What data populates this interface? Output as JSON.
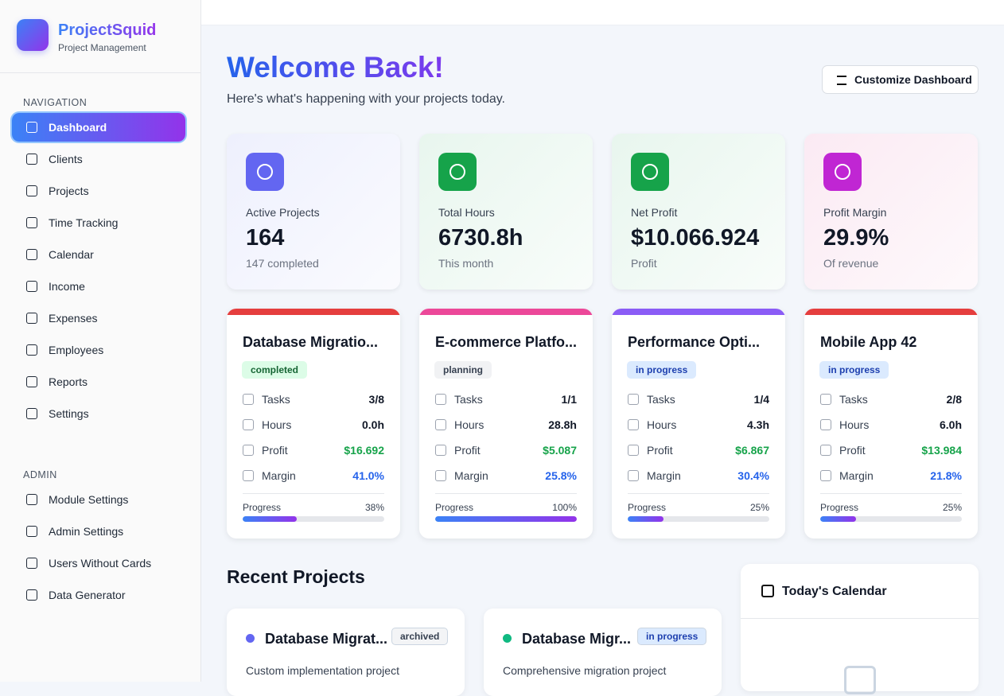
{
  "sidebar": {
    "brand": "ProjectSquid",
    "tagline": "Project Management",
    "nav_heading": "NAVIGATION",
    "nav": [
      "Dashboard",
      "Clients",
      "Projects",
      "Time Tracking",
      "Calendar",
      "Income",
      "Expenses",
      "Employees",
      "Reports",
      "Settings"
    ],
    "admin_heading": "ADMIN",
    "admin": [
      "Module Settings",
      "Admin Settings",
      "Users Without Cards",
      "Data Generator"
    ]
  },
  "header": {
    "title": "Welcome Back!",
    "subtitle": "Here's what's happening with your projects today.",
    "button": "Customize Dashboard"
  },
  "stats": [
    {
      "label": "Active Projects",
      "value": "164",
      "note": "147 completed",
      "color": "#6366f1",
      "bg": "#eef0fd"
    },
    {
      "label": "Total Hours",
      "value": "6730.8h",
      "note": "This month",
      "color": "#16a34a",
      "bg": "#e8f6ee"
    },
    {
      "label": "Net Profit",
      "value": "$10.066.924",
      "note": "Profit",
      "color": "#16a34a",
      "bg": "#e8f6ee"
    },
    {
      "label": "Profit Margin",
      "value": "29.9%",
      "note": "Of revenue",
      "color": "#c026d3",
      "bg": "#fbeaf3"
    }
  ],
  "card_labels": [
    "Tasks",
    "Hours",
    "Profit",
    "Margin",
    "Progress"
  ],
  "project_cards": [
    {
      "name": "Database Migratio...",
      "status": "completed",
      "badge_bg": "#dcfce7",
      "badge_fg": "#166534",
      "color": "#e53e3e",
      "tasks": "3/8",
      "hours": "0.0h",
      "profit": "$16.692",
      "margin": "41.0%",
      "progress": 38,
      "progress_label": "38%"
    },
    {
      "name": "E-commerce Platfo...",
      "status": "planning",
      "badge_bg": "#f1f2f4",
      "badge_fg": "#374151",
      "color": "#ec4899",
      "tasks": "1/1",
      "hours": "28.8h",
      "profit": "$5.087",
      "margin": "25.8%",
      "progress": 100,
      "progress_label": "100%"
    },
    {
      "name": "Performance Opti...",
      "status": "in progress",
      "badge_bg": "#dbeafe",
      "badge_fg": "#1e40af",
      "color": "#8b5cf6",
      "tasks": "1/4",
      "hours": "4.3h",
      "profit": "$6.867",
      "margin": "30.4%",
      "progress": 25,
      "progress_label": "25%"
    },
    {
      "name": "Mobile App 42",
      "status": "in progress",
      "badge_bg": "#dbeafe",
      "badge_fg": "#1e40af",
      "color": "#e53e3e",
      "tasks": "2/8",
      "hours": "6.0h",
      "profit": "$13.984",
      "margin": "21.8%",
      "progress": 25,
      "progress_label": "25%"
    }
  ],
  "recent": {
    "title": "Recent Projects",
    "items": [
      {
        "name": "Database Migrat...",
        "status": "archived",
        "description": "Custom implementation project",
        "color": "#6366f1",
        "badge_bg": "#f3f4f6",
        "badge_fg": "#374151"
      },
      {
        "name": "Database Migr...",
        "status": "in progress",
        "description": "Comprehensive migration project",
        "color": "#10b981",
        "badge_bg": "#dbeafe",
        "badge_fg": "#1e40af"
      }
    ]
  },
  "calendar": {
    "title": "Today's Calendar"
  }
}
